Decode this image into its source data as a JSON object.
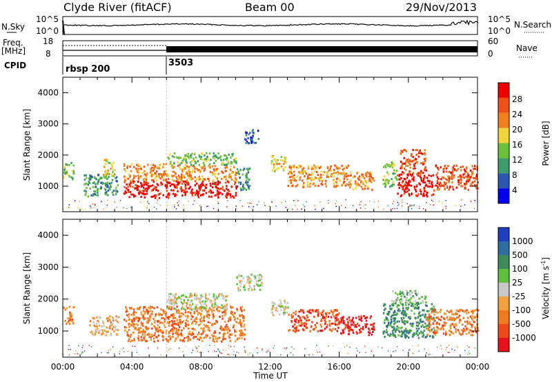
{
  "header": {
    "station": "Clyde River (fitACF)",
    "beam": "Beam 00",
    "date": "29/Nov/2013"
  },
  "sky_panel": {
    "left_label": "N.Sky",
    "left_ticks": [
      "10^5",
      "10^0"
    ],
    "right_label": "N.Search",
    "right_ticks": [
      "10^5",
      "10^0"
    ]
  },
  "freq_panel": {
    "left_label_line1": "Freq.",
    "left_label_line2": "[MHz]",
    "left_ticks": [
      "18",
      "8"
    ],
    "right_label": "Nave",
    "right_ticks": [
      "60",
      "0"
    ]
  },
  "cpid": {
    "label": "CPID",
    "segments": [
      {
        "name": "rbsp 200",
        "start_hour": 0
      },
      {
        "name": "3503",
        "start_hour": 6
      }
    ]
  },
  "chart_data": [
    {
      "type": "heatmap",
      "ylabel": "Slant Range [km]",
      "xlabel": "Time UT",
      "xlim": [
        0,
        24
      ],
      "ylim": [
        180,
        4500
      ],
      "xticks": [
        "00:00",
        "04:00",
        "08:00",
        "12:00",
        "16:00",
        "20:00",
        "00:00"
      ],
      "yticks": [
        1000,
        2000,
        3000,
        4000
      ],
      "colorbar": {
        "label": "Power [dB]",
        "ticks": [
          "28",
          "24",
          "20",
          "16",
          "12",
          "8",
          "4"
        ],
        "colors": [
          "#0000ee",
          "#2c57b0",
          "#3d9a6a",
          "#6cc13c",
          "#f0d43a",
          "#f07f1e",
          "#f05018",
          "#ee0000"
        ]
      },
      "scatter_regions": [
        {
          "t": [
            0.0,
            0.6
          ],
          "r": [
            1250,
            1800
          ],
          "level": 3
        },
        {
          "t": [
            1.2,
            3.2
          ],
          "r": [
            700,
            1400
          ],
          "level": 2
        },
        {
          "t": [
            2.3,
            3.0
          ],
          "r": [
            1300,
            1900
          ],
          "level": 4
        },
        {
          "t": [
            3.5,
            6.0
          ],
          "r": [
            650,
            1200
          ],
          "level": 7
        },
        {
          "t": [
            3.5,
            6.0
          ],
          "r": [
            1200,
            1750
          ],
          "level": 5
        },
        {
          "t": [
            6.0,
            10.0
          ],
          "r": [
            650,
            1200
          ],
          "level": 7
        },
        {
          "t": [
            6.0,
            10.0
          ],
          "r": [
            1200,
            1700
          ],
          "level": 5
        },
        {
          "t": [
            6.0,
            10.0
          ],
          "r": [
            1700,
            2100
          ],
          "level": 3
        },
        {
          "t": [
            10.0,
            10.8
          ],
          "r": [
            900,
            1600
          ],
          "level": 2
        },
        {
          "t": [
            10.5,
            11.3
          ],
          "r": [
            2400,
            2850
          ],
          "level": 1
        },
        {
          "t": [
            12.0,
            12.9
          ],
          "r": [
            1500,
            2000
          ],
          "level": 4
        },
        {
          "t": [
            13.0,
            16.5
          ],
          "r": [
            1000,
            1700
          ],
          "level": 5
        },
        {
          "t": [
            16.5,
            18.0
          ],
          "r": [
            900,
            1500
          ],
          "level": 5
        },
        {
          "t": [
            18.5,
            19.3
          ],
          "r": [
            1000,
            1800
          ],
          "level": 3
        },
        {
          "t": [
            19.3,
            21.5
          ],
          "r": [
            700,
            1400
          ],
          "level": 7
        },
        {
          "t": [
            19.5,
            21.0
          ],
          "r": [
            1400,
            2200
          ],
          "level": 6
        },
        {
          "t": [
            21.5,
            24.0
          ],
          "r": [
            900,
            1700
          ],
          "level": 6
        }
      ]
    },
    {
      "type": "heatmap",
      "ylabel": "Slant Range [km]",
      "xlabel": "Time UT",
      "xlim": [
        0,
        24
      ],
      "ylim": [
        180,
        4500
      ],
      "xticks": [
        "00:00",
        "04:00",
        "08:00",
        "12:00",
        "16:00",
        "20:00",
        "00:00"
      ],
      "yticks": [
        1000,
        2000,
        3000,
        4000
      ],
      "colorbar": {
        "label_main": "Velocity",
        "label_units": "[m s",
        "label_exp": "-1",
        "label_close": "]",
        "ticks": [
          "1000",
          "500",
          "100",
          "25",
          "-25",
          "-100",
          "-500",
          "-1000"
        ],
        "colors": [
          "#1f3fbf",
          "#2f6fa0",
          "#3e8a5a",
          "#5fbf3c",
          "#c8c8c8",
          "#f0a040",
          "#f07a20",
          "#f04818",
          "#e8101a"
        ]
      },
      "scatter_regions": [
        {
          "t": [
            0.0,
            0.6
          ],
          "r": [
            1250,
            1800
          ],
          "level": 6
        },
        {
          "t": [
            1.5,
            3.2
          ],
          "r": [
            900,
            1500
          ],
          "level": 5
        },
        {
          "t": [
            3.5,
            10.5
          ],
          "r": [
            700,
            1800
          ],
          "level": 6
        },
        {
          "t": [
            6.0,
            9.5
          ],
          "r": [
            1700,
            2200
          ],
          "level": 4
        },
        {
          "t": [
            10.0,
            11.5
          ],
          "r": [
            2300,
            2800
          ],
          "level": 4
        },
        {
          "t": [
            12.0,
            13.0
          ],
          "r": [
            1500,
            2000
          ],
          "level": 4
        },
        {
          "t": [
            13.0,
            16.0
          ],
          "r": [
            1000,
            1700
          ],
          "level": 7
        },
        {
          "t": [
            16.0,
            18.0
          ],
          "r": [
            900,
            1500
          ],
          "level": 8
        },
        {
          "t": [
            18.5,
            21.5
          ],
          "r": [
            800,
            1900
          ],
          "level": 2
        },
        {
          "t": [
            19.0,
            21.0
          ],
          "r": [
            1900,
            2300
          ],
          "level": 3
        },
        {
          "t": [
            21.0,
            24.0
          ],
          "r": [
            900,
            1700
          ],
          "level": 6
        }
      ]
    }
  ]
}
